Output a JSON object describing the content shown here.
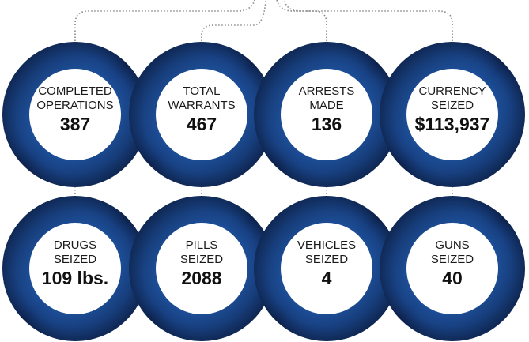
{
  "items": [
    {
      "label": [
        "COMPLETED",
        "OPERATIONS"
      ],
      "value": "387"
    },
    {
      "label": [
        "TOTAL",
        "WARRANTS"
      ],
      "value": "467"
    },
    {
      "label": [
        "ARRESTS",
        "MADE"
      ],
      "value": "136"
    },
    {
      "label": [
        "CURRENCY",
        "SEIZED"
      ],
      "value": "$113,937"
    },
    {
      "label": [
        "DRUGS",
        "SEIZED"
      ],
      "value": "109 lbs."
    },
    {
      "label": [
        "PILLS",
        "SEIZED"
      ],
      "value": "2088"
    },
    {
      "label": [
        "VEHICLES",
        "SEIZED"
      ],
      "value": "4"
    },
    {
      "label": [
        "GUNS",
        "SEIZED"
      ],
      "value": "40"
    }
  ]
}
